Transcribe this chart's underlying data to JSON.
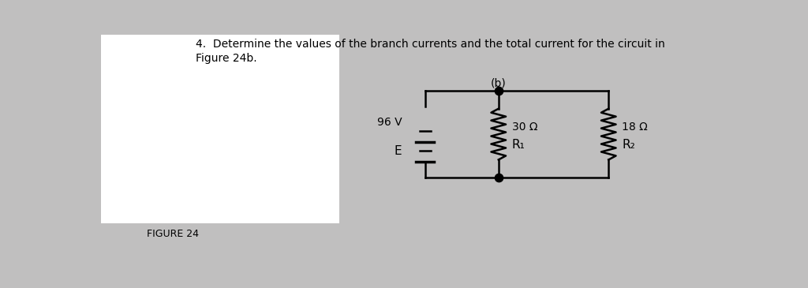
{
  "bg_color": "#c0bfbf",
  "white_box_color": "#ffffff",
  "title_line1": "4.  Determine the values of the branch currents and the total current for the circuit in",
  "title_line2": "Figure 24b.",
  "figure_label": "FIGURE 24",
  "sub_label": "(b)",
  "battery_label_E": "E",
  "battery_label_V": "96 V",
  "R1_label": "R₁",
  "R1_value": "30 Ω",
  "R2_label": "R₂",
  "R2_value": "18 Ω",
  "circuit_color": "#000000",
  "text_color": "#000000",
  "title_fontsize": 10,
  "label_fontsize": 10,
  "fig_label_fontsize": 9
}
